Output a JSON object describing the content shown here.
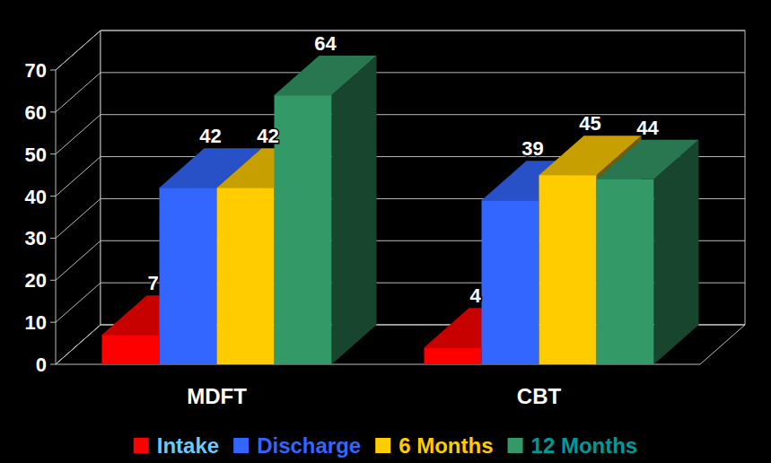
{
  "chart_data": {
    "type": "bar",
    "categories": [
      "MDFT",
      "CBT"
    ],
    "series": [
      {
        "name": "Intake",
        "color": "#ff0000",
        "values": [
          7,
          4
        ]
      },
      {
        "name": "Discharge",
        "color": "#3366ff",
        "values": [
          42,
          39
        ]
      },
      {
        "name": "6 Months",
        "color": "#ffcc00",
        "values": [
          42,
          45
        ]
      },
      {
        "name": "12 Months",
        "color": "#339966",
        "values": [
          64,
          44
        ]
      }
    ],
    "ylim": [
      0,
      70
    ],
    "yticks": [
      0,
      10,
      20,
      30,
      40,
      50,
      60,
      70
    ],
    "grid": true,
    "data_labels": true,
    "legend": "bottom"
  }
}
